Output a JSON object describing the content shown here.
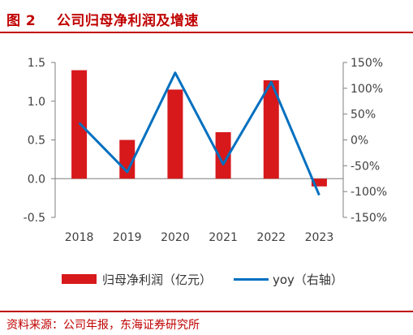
{
  "header": {
    "title": "图 2    公司归母净利润及增速"
  },
  "source": "资料来源：公司年报，东海证券研究所",
  "colors": {
    "accent": "#c00000",
    "bar": "#d7191c",
    "line": "#0070c0",
    "axis": "#7f7f7f",
    "text": "#404040"
  },
  "chart_data": {
    "type": "bar+line",
    "title": "",
    "categories": [
      "2018",
      "2019",
      "2020",
      "2021",
      "2022",
      "2023"
    ],
    "series": [
      {
        "name": "归母净利润（亿元）",
        "type": "bar",
        "axis": "left",
        "values": [
          1.4,
          0.5,
          1.15,
          0.6,
          1.27,
          -0.1
        ]
      },
      {
        "name": "yoy（右轴）",
        "type": "line",
        "axis": "right",
        "values": [
          33,
          -62,
          130,
          -47,
          112,
          -107
        ]
      }
    ],
    "left_axis": {
      "ylim": [
        -0.5,
        1.5
      ],
      "ticks": [
        "-0.5",
        "0.0",
        "0.5",
        "1.0",
        "1.5"
      ]
    },
    "right_axis": {
      "ylim": [
        -150,
        150
      ],
      "ticks": [
        "-150%",
        "-100%",
        "-50%",
        "0%",
        "50%",
        "100%",
        "150%"
      ]
    },
    "grid": false,
    "legend_position": "bottom"
  }
}
